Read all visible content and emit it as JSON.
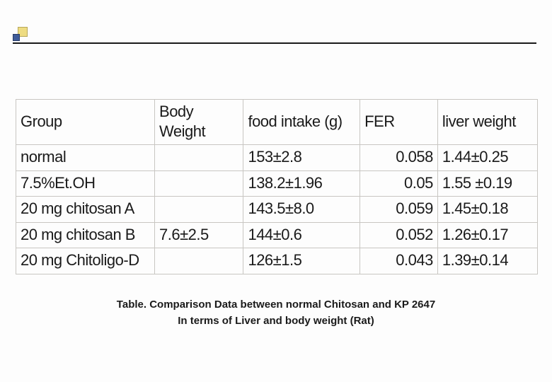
{
  "decoration": {
    "accent_color_1": "#eedc82",
    "accent_color_2": "#3f5c9a",
    "line_color": "#1a1a1a"
  },
  "table": {
    "border_color": "#c8c6c2",
    "background_color": "#fdfdfd",
    "text_color": "#1a1a1a",
    "fontsize": 22,
    "columns": [
      {
        "key": "group",
        "label": "Group",
        "align": "left"
      },
      {
        "key": "body_weight",
        "label": "Body Weight",
        "align": "left"
      },
      {
        "key": "food_intake",
        "label": "food intake (g)",
        "align": "left"
      },
      {
        "key": "fer",
        "label": "FER",
        "align": "right"
      },
      {
        "key": "liver_weight",
        "label": "liver weight",
        "align": "left"
      }
    ],
    "rows": [
      {
        "group": "normal",
        "body_weight": "",
        "food_intake": "153±2.8",
        "fer": "0.058",
        "liver_weight": "1.44±0.25"
      },
      {
        "group": "7.5%Et.OH",
        "body_weight": "",
        "food_intake": "138.2±1.96",
        "fer": "0.05",
        "liver_weight": "1.55 ±0.19"
      },
      {
        "group": "20 mg chitosan A",
        "body_weight": "",
        "food_intake": "143.5±8.0",
        "fer": "0.059",
        "liver_weight": "1.45±0.18"
      },
      {
        "group": "20 mg chitosan B",
        "body_weight": "7.6±2.5",
        "food_intake": "144±0.6",
        "fer": "0.052",
        "liver_weight": "1.26±0.17"
      },
      {
        "group": "20 mg Chitoligo-D",
        "body_weight": "",
        "food_intake": "126±1.5",
        "fer": "0.043",
        "liver_weight": "1.39±0.14"
      }
    ]
  },
  "caption": {
    "line1": "Table. Comparison Data between normal Chitosan and KP 2647",
    "line2": "In terms of Liver and body weight (Rat)",
    "fontsize": 15,
    "font_weight": 700,
    "color": "#1a1a1a"
  }
}
